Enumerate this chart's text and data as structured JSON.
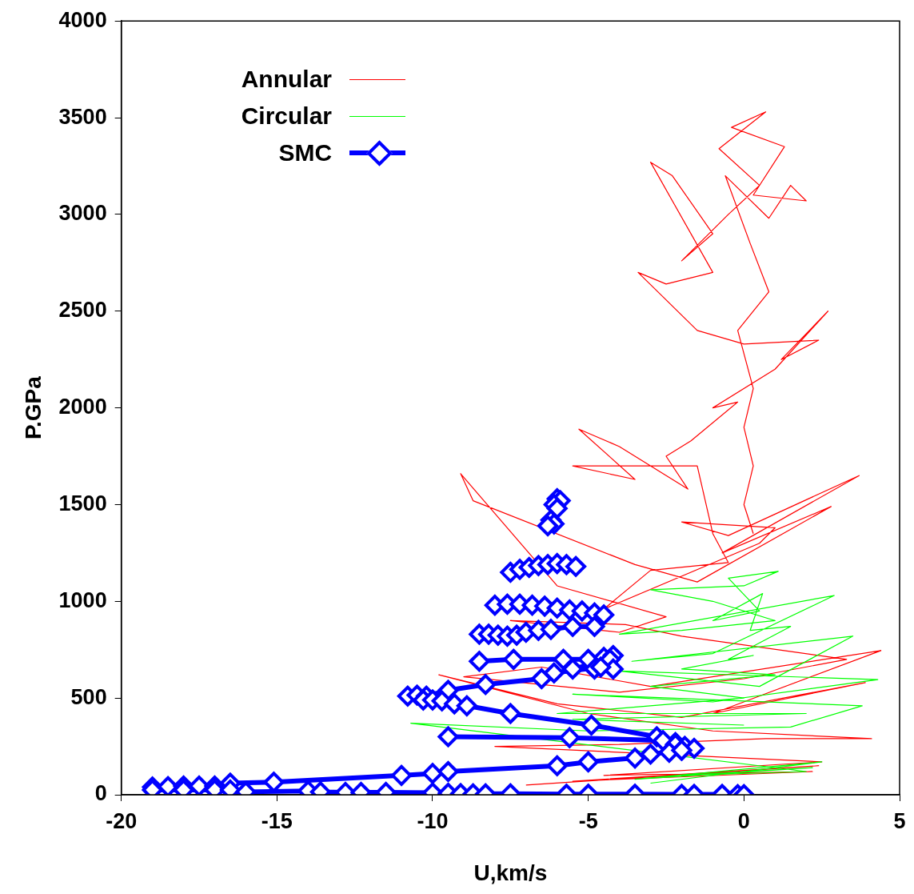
{
  "chart_data": {
    "type": "line",
    "xlabel": "U,km/s",
    "ylabel": "P.GPa",
    "xlim": [
      -20,
      5
    ],
    "xticks": [
      -20,
      -15,
      -10,
      -5,
      0,
      5
    ],
    "ylim": [
      0,
      4000
    ],
    "yticks": [
      0,
      500,
      1000,
      1500,
      2000,
      2500,
      3000,
      3500,
      4000
    ],
    "grid": false,
    "legend": "top left",
    "series": [
      {
        "name": "Annular",
        "color": "#ff0000",
        "marker": "none",
        "x": [
          -7.0,
          2.4,
          -5.5,
          2.2,
          -4.5,
          2.5,
          -8.0,
          -4.0,
          0.7,
          4.1,
          -1.0,
          -5.0,
          -9.8,
          -6.0,
          -2.0,
          3.9,
          -1.0,
          4.4,
          -3.0,
          -6.5,
          -9.0,
          -4.0,
          0.0,
          3.3,
          -2.0,
          -3.8,
          -7.5,
          -4.0,
          -2.5,
          -6.0,
          -9.1,
          -8.7,
          -3.5,
          -1.5,
          2.8,
          -0.7,
          3.7,
          -0.5,
          -2.0,
          -1.0,
          1.0,
          0.5,
          -4.5,
          -3.0,
          -0.5,
          -1.0,
          -1.5,
          -5.5,
          -3.5,
          -5.3,
          -4.0,
          -1.8,
          -2.5,
          -1.7,
          -0.2,
          -1.0,
          1.0,
          2.7,
          1.2,
          2.4,
          0.0,
          -1.5,
          -3.4,
          -2.5,
          -1.0,
          -3.0,
          -2.3,
          -1.0,
          -2.0,
          -0.5,
          0.5,
          -0.8,
          0.7,
          -0.4,
          1.3,
          0.3,
          2.0,
          1.5,
          0.8,
          -0.6,
          0.2,
          0.8,
          -0.2,
          0.3,
          0.0,
          0.3,
          0.0,
          0.3
        ],
        "values": [
          50,
          150,
          70,
          120,
          100,
          170,
          250,
          260,
          290,
          290,
          330,
          420,
          620,
          470,
          400,
          580,
          420,
          745,
          560,
          660,
          610,
          530,
          600,
          700,
          820,
          880,
          900,
          840,
          920,
          1080,
          1660,
          1520,
          1190,
          1100,
          1490,
          1250,
          1650,
          1340,
          1410,
          1400,
          1380,
          1300,
          960,
          1160,
          1200,
          1350,
          1700,
          1700,
          1630,
          1890,
          1800,
          1580,
          1750,
          1830,
          2030,
          2000,
          2200,
          2500,
          2250,
          2350,
          2330,
          2400,
          2700,
          2640,
          2700,
          3270,
          3200,
          2900,
          2760,
          3000,
          3150,
          3340,
          3530,
          3450,
          3350,
          3100,
          3070,
          3150,
          2980,
          3200,
          2850,
          2600,
          2400,
          2100,
          1900,
          1700,
          1500,
          1350
        ]
      },
      {
        "name": "Circular",
        "color": "#00ff00",
        "marker": "none",
        "x": [
          -3.0,
          2.5,
          -3.5,
          2.2,
          -2.0,
          2.0,
          -10.7,
          -5.0,
          1.5,
          3.8,
          -5.5,
          -1.0,
          4.3,
          -4.0,
          0.5,
          3.5,
          -3.6,
          -1.0,
          2.9,
          -4.0,
          -2.0,
          1.0,
          -1.0,
          -3.0,
          0.0,
          1.1,
          -0.5,
          0.5,
          -1.0,
          0.6,
          0.2,
          1.5,
          -0.5,
          0.3,
          -2.0,
          1.0,
          -3.0,
          0.0,
          -6.0,
          2.0,
          -5.5,
          0.0
        ],
        "values": [
          60,
          170,
          80,
          140,
          100,
          120,
          370,
          330,
          350,
          460,
          520,
          480,
          595,
          640,
          560,
          820,
          690,
          730,
          1030,
          830,
          850,
          900,
          1000,
          1060,
          1080,
          1155,
          1120,
          950,
          900,
          1040,
          850,
          870,
          700,
          720,
          650,
          620,
          560,
          500,
          420,
          420,
          390,
          360
        ]
      },
      {
        "name": "SMC",
        "color": "#0000ff",
        "marker": "diamond",
        "x": [
          -6.0,
          -5.9,
          -6.1,
          -6.0,
          -6.2,
          -6.1,
          -6.3,
          null,
          -7.5,
          -7.2,
          -6.9,
          -6.6,
          -6.3,
          -6.0,
          -5.7,
          -5.4,
          null,
          -8.0,
          -7.6,
          -7.2,
          -6.8,
          -6.4,
          -6.0,
          -5.6,
          -5.2,
          -4.8,
          -4.5,
          null,
          -8.5,
          -8.2,
          -7.9,
          -7.6,
          -7.3,
          -7.0,
          -6.6,
          -6.2,
          -5.5,
          -4.8,
          null,
          -8.5,
          -7.4,
          -5.8,
          -5.0,
          -4.5,
          -4.2,
          -4.3,
          -5.5,
          -4.8,
          -4.2,
          null,
          -10.8,
          -10.5,
          -10.2,
          -9.5,
          -8.3,
          -6.5,
          -6.1,
          -4.6,
          null,
          -10.3,
          -10.0,
          -9.7,
          -9.3,
          -8.9,
          -7.5,
          -4.9,
          -2.8,
          -2.2,
          -1.9,
          -1.6,
          null,
          -9.5,
          -5.6,
          -2.6,
          -2.2,
          -2.0,
          null,
          -19.0,
          -18.5,
          -18.0,
          -17.5,
          -17.0,
          -16.5,
          -15.1,
          -11.0,
          -10.0,
          -9.5,
          -6.0,
          -5.0,
          -3.5,
          -3.0,
          -2.4,
          -2.0,
          null,
          -19.0,
          -18.0,
          -17.0,
          -16.5,
          -16.0,
          -14.0,
          -13.6,
          -12.8,
          -12.3,
          -11.5,
          -10.0,
          -9.5,
          -9.1,
          -8.7,
          -8.3,
          -7.5,
          -5.7,
          -5.0,
          -3.5,
          -2.0,
          -1.6,
          -0.7,
          -0.2,
          0.0
        ],
        "values": [
          1530,
          1520,
          1500,
          1480,
          1420,
          1400,
          1390,
          null,
          1150,
          1165,
          1175,
          1185,
          1190,
          1195,
          1190,
          1180,
          null,
          980,
          985,
          985,
          980,
          975,
          965,
          955,
          950,
          940,
          930,
          null,
          830,
          830,
          825,
          820,
          825,
          840,
          850,
          855,
          870,
          870,
          null,
          690,
          700,
          700,
          700,
          710,
          720,
          700,
          650,
          650,
          650,
          null,
          510,
          515,
          510,
          540,
          570,
          600,
          630,
          660,
          null,
          490,
          490,
          485,
          470,
          460,
          420,
          360,
          300,
          270,
          250,
          240,
          null,
          300,
          295,
          280,
          260,
          230,
          null,
          40,
          42,
          45,
          45,
          45,
          60,
          65,
          100,
          110,
          120,
          150,
          170,
          190,
          210,
          220,
          230,
          null,
          25,
          25,
          25,
          25,
          15,
          20,
          15,
          12,
          12,
          12,
          10,
          8,
          6,
          5,
          5,
          5,
          3,
          3,
          3,
          2,
          2,
          2,
          1,
          1
        ]
      }
    ]
  }
}
